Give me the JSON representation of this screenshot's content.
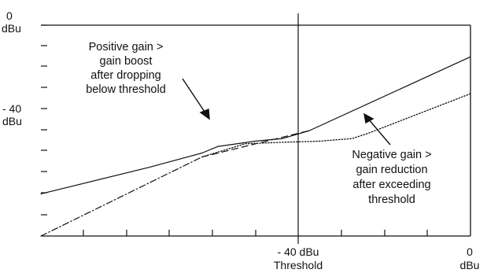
{
  "axes": {
    "y_top_value": "0",
    "y_top_unit": "dBu",
    "y_mid_value": "- 40",
    "y_mid_unit": "dBu",
    "x_mid_value": "- 40 dBu",
    "x_mid_caption": "Threshold",
    "x_right_value": "0",
    "x_right_unit": "dBu"
  },
  "annotations": {
    "positive": [
      "Positive gain >",
      "gain boost",
      "after dropping",
      "below threshold"
    ],
    "negative": [
      "Negative gain >",
      "gain reduction",
      "after exceeding",
      "threshold"
    ]
  },
  "chart_data": {
    "type": "line",
    "xlim": [
      -80,
      0
    ],
    "ylim": [
      -80,
      0
    ],
    "x_unit": "dBu",
    "y_unit": "dBu",
    "threshold_x": -40,
    "series": [
      {
        "role": "positive-gain",
        "style": "solid",
        "points": [
          [
            -80,
            -64
          ],
          [
            -60,
            -54
          ],
          [
            -50,
            -48.5
          ],
          [
            -47,
            -46
          ],
          [
            -40,
            -44
          ],
          [
            -35,
            -43
          ],
          [
            -30,
            -40
          ],
          [
            0,
            -12
          ]
        ]
      },
      {
        "role": "unity-reference",
        "style": "dash-dot",
        "points": [
          [
            -80,
            -80
          ],
          [
            -70,
            -70
          ],
          [
            -60,
            -60
          ],
          [
            -50,
            -50
          ]
        ]
      },
      {
        "role": "unity-reference",
        "style": "dashed",
        "points": [
          [
            -50,
            -50
          ],
          [
            -30,
            -40
          ]
        ]
      },
      {
        "role": "negative-gain",
        "style": "dotted",
        "points": [
          [
            -50,
            -50
          ],
          [
            -42,
            -45
          ],
          [
            -36,
            -44.5
          ],
          [
            -28,
            -44
          ],
          [
            -22,
            -43
          ],
          [
            -19,
            -41
          ],
          [
            0,
            -26
          ]
        ]
      }
    ]
  }
}
